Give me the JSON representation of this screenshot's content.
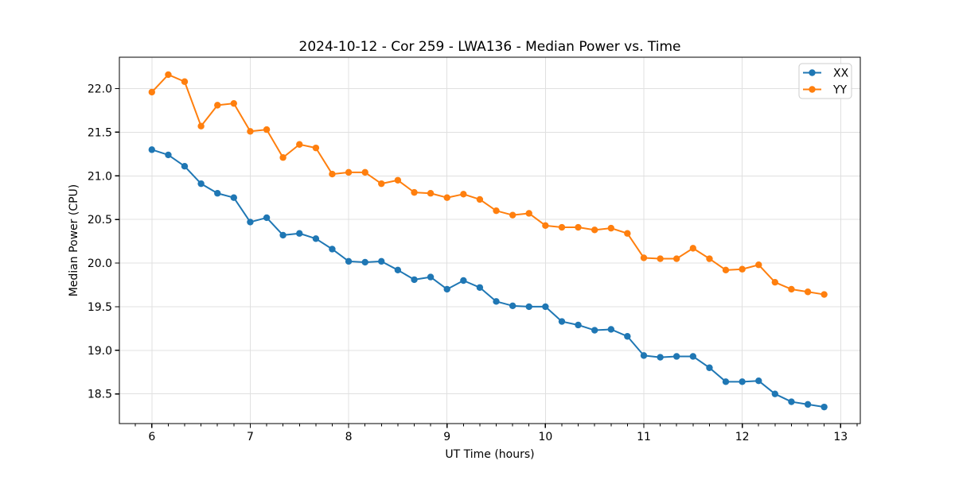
{
  "figure": {
    "title": "2024-10-12 - Cor 259 - LWA136 - Median Power vs. Time",
    "xlabel": "UT Time (hours)",
    "ylabel": "Median Power (CPU)"
  },
  "legend": {
    "position": "upper right",
    "entries": [
      {
        "label": "XX",
        "color": "#1f77b4"
      },
      {
        "label": "YY",
        "color": "#ff7f0e"
      }
    ]
  },
  "colors": {
    "series_xx": "#1f77b4",
    "series_yy": "#ff7f0e",
    "grid": "#e0e0e0",
    "spine": "#000000",
    "legend_border": "#cccccc",
    "background": "#ffffff"
  },
  "chart_data": {
    "type": "line",
    "title": "2024-10-12 - Cor 259 - LWA136 - Median Power vs. Time",
    "xlabel": "UT Time (hours)",
    "ylabel": "Median Power (CPU)",
    "marker": "circle",
    "grid": true,
    "legend_position": "upper right",
    "xlim": [
      5.67,
      13.2
    ],
    "ylim": [
      18.16,
      22.36
    ],
    "xticks": [
      6,
      7,
      8,
      9,
      10,
      11,
      12,
      13
    ],
    "xtick_labels": [
      "6",
      "7",
      "8",
      "9",
      "10",
      "11",
      "12",
      "13"
    ],
    "x_minor_tick_step": 0.16667,
    "yticks": [
      18.5,
      19.0,
      19.5,
      20.0,
      20.5,
      21.0,
      21.5,
      22.0
    ],
    "ytick_labels": [
      "18.5",
      "19.0",
      "19.5",
      "20.0",
      "20.5",
      "21.0",
      "21.5",
      "22.0"
    ],
    "x": [
      6.0,
      6.167,
      6.333,
      6.5,
      6.667,
      6.833,
      7.0,
      7.167,
      7.333,
      7.5,
      7.667,
      7.833,
      8.0,
      8.167,
      8.333,
      8.5,
      8.667,
      8.833,
      9.0,
      9.167,
      9.333,
      9.5,
      9.667,
      9.833,
      10.0,
      10.167,
      10.333,
      10.5,
      10.667,
      10.833,
      11.0,
      11.167,
      11.333,
      11.5,
      11.667,
      11.833,
      12.0,
      12.167,
      12.333,
      12.5,
      12.667,
      12.833
    ],
    "series": [
      {
        "name": "XX",
        "color": "#1f77b4",
        "values": [
          21.3,
          21.24,
          21.11,
          20.91,
          20.8,
          20.75,
          20.47,
          20.52,
          20.32,
          20.34,
          20.28,
          20.16,
          20.02,
          20.01,
          20.02,
          19.92,
          19.81,
          19.84,
          19.7,
          19.8,
          19.72,
          19.56,
          19.51,
          19.5,
          19.5,
          19.33,
          19.29,
          19.23,
          19.24,
          19.16,
          18.94,
          18.92,
          18.93,
          18.93,
          18.8,
          18.64,
          18.64,
          18.65,
          18.5,
          18.41,
          18.38,
          18.35
        ]
      },
      {
        "name": "YY",
        "color": "#ff7f0e",
        "values": [
          21.96,
          22.16,
          22.08,
          21.57,
          21.81,
          21.83,
          21.51,
          21.53,
          21.21,
          21.36,
          21.32,
          21.02,
          21.04,
          21.04,
          20.91,
          20.95,
          20.81,
          20.8,
          20.75,
          20.79,
          20.73,
          20.6,
          20.55,
          20.57,
          20.43,
          20.41,
          20.41,
          20.38,
          20.4,
          20.34,
          20.06,
          20.05,
          20.05,
          20.17,
          20.05,
          19.92,
          19.93,
          19.98,
          19.78,
          19.7,
          19.67,
          19.64
        ]
      }
    ]
  }
}
